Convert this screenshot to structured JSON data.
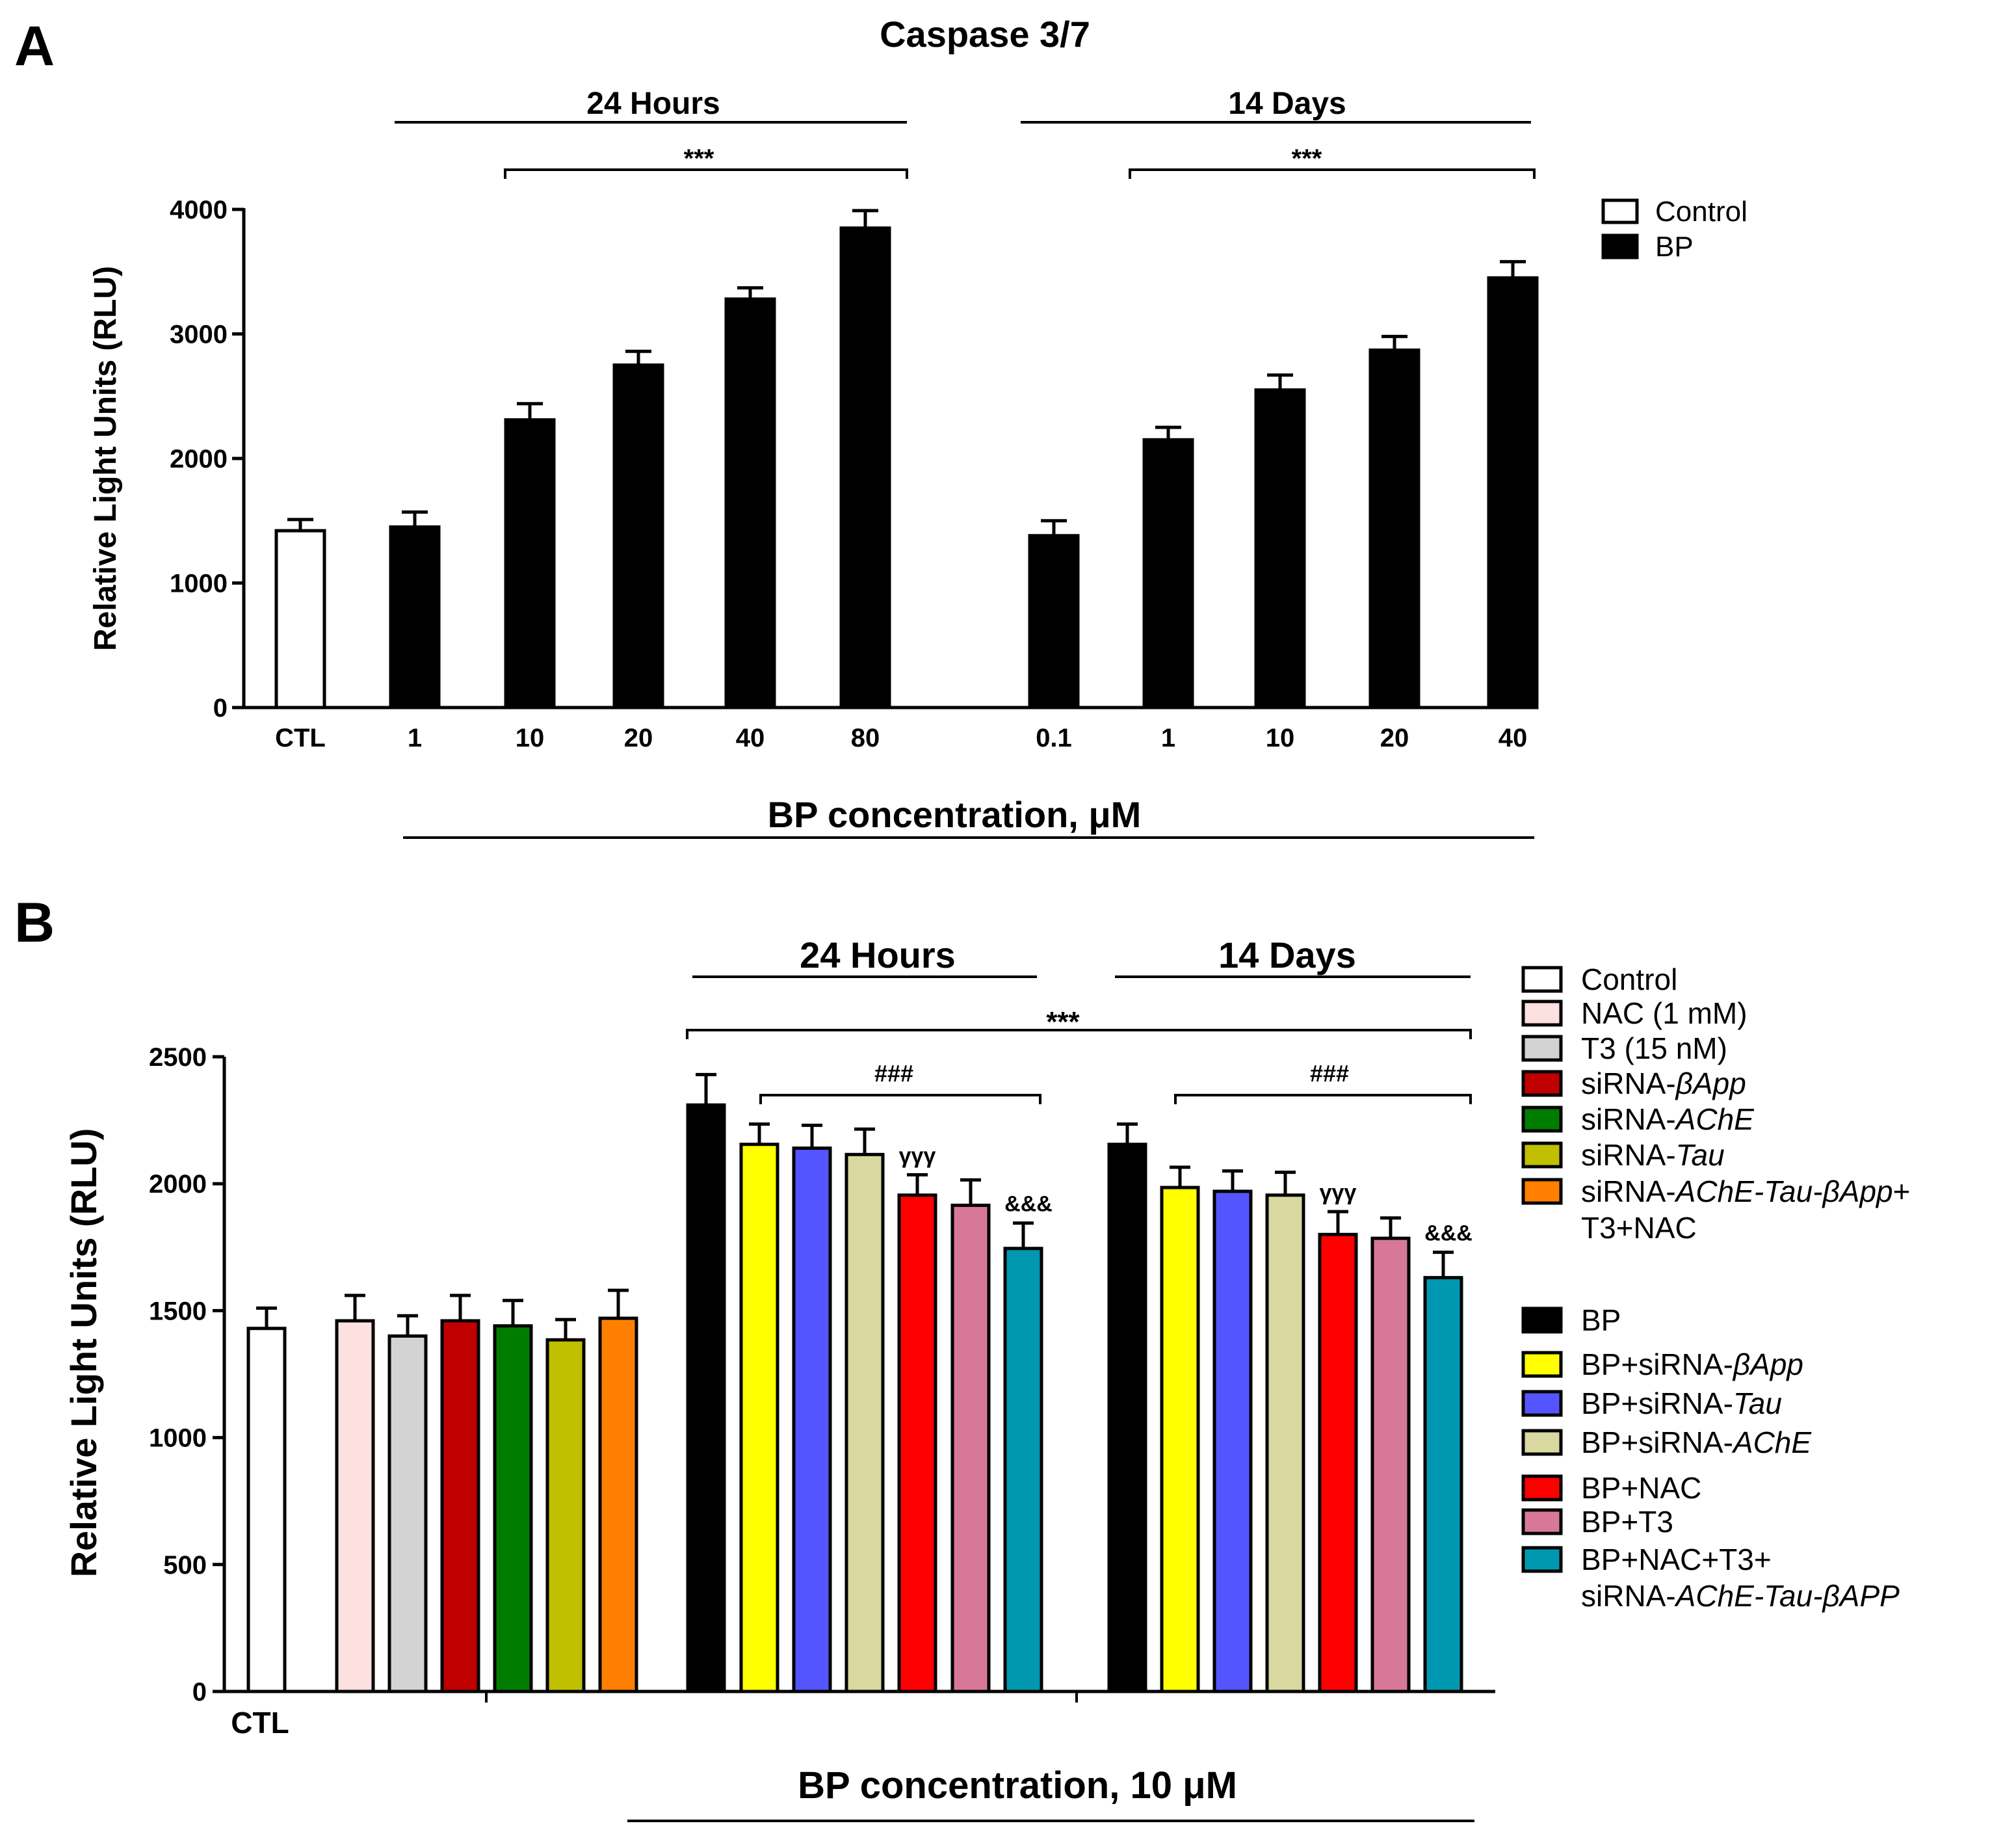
{
  "chart_data": [
    {
      "panel": "A",
      "type": "bar",
      "title": "Caspase 3/7",
      "ylabel": "Relative Light Units (RLU)",
      "xlabel": "BP concentration, μM",
      "ylim": [
        0,
        4000
      ],
      "yticks": [
        "0",
        "1000",
        "2000",
        "3000",
        "4000"
      ],
      "groups": [
        {
          "label": "24 Hours",
          "significance": "***"
        },
        {
          "label": "14 Days",
          "significance": "***"
        }
      ],
      "legend": [
        {
          "label": "Control",
          "color": "#ffffff"
        },
        {
          "label": "BP",
          "color": "#000000"
        }
      ],
      "bars": [
        {
          "category": "CTL",
          "value": 1420,
          "error": 90,
          "series": "Control",
          "color": "#ffffff"
        },
        {
          "category": "1",
          "value": 1450,
          "error": 120,
          "series": "BP",
          "color": "#000000"
        },
        {
          "category": "10",
          "value": 2310,
          "error": 130,
          "series": "BP",
          "color": "#000000"
        },
        {
          "category": "20",
          "value": 2750,
          "error": 110,
          "series": "BP",
          "color": "#000000"
        },
        {
          "category": "40",
          "value": 3280,
          "error": 90,
          "series": "BP",
          "color": "#000000"
        },
        {
          "category": "80",
          "value": 3850,
          "error": 140,
          "series": "BP",
          "color": "#000000"
        },
        {
          "category": "0.1",
          "value": 1380,
          "error": 120,
          "series": "BP",
          "color": "#000000"
        },
        {
          "category": "1",
          "value": 2150,
          "error": 100,
          "series": "BP",
          "color": "#000000"
        },
        {
          "category": "10",
          "value": 2550,
          "error": 120,
          "series": "BP",
          "color": "#000000"
        },
        {
          "category": "20",
          "value": 2870,
          "error": 110,
          "series": "BP",
          "color": "#000000"
        },
        {
          "category": "40",
          "value": 3450,
          "error": 130,
          "series": "BP",
          "color": "#000000"
        }
      ]
    },
    {
      "panel": "B",
      "type": "bar",
      "title": "",
      "ylabel": "Relative Light Units (RLU)",
      "xlabel": "BP concentration, 10  μM",
      "ylim": [
        0,
        2500
      ],
      "yticks": [
        "0",
        "500",
        "1000",
        "1500",
        "2000",
        "2500"
      ],
      "ctl_label": "CTL",
      "overall_significance": "***",
      "groups": [
        {
          "label": "24 Hours",
          "significance": "###"
        },
        {
          "label": "14 Days",
          "significance": "###"
        }
      ],
      "bar_annotations": [
        "γγγ",
        "&&&",
        "γγγ",
        "&&&"
      ],
      "legend_controls": [
        {
          "label": "Control",
          "color": "#ffffff"
        },
        {
          "label": "NAC (1 mM)",
          "color": "#fde0e0"
        },
        {
          "label": "T3 (15 nM)",
          "color": "#d3d3d3"
        },
        {
          "label": "siRNA-βApp",
          "color": "#c00000"
        },
        {
          "label": "siRNA-AChE",
          "color": "#007d00"
        },
        {
          "label": "siRNA-Tau",
          "color": "#c0c000"
        },
        {
          "label": "siRNA-AChE-Tau-βApp+",
          "color": "#ff8000"
        },
        {
          "label": "T3+NAC",
          "color": ""
        }
      ],
      "legend_bp": [
        {
          "label": "BP",
          "color": "#000000"
        },
        {
          "label": "BP+siRNA-βApp",
          "color": "#ffff00"
        },
        {
          "label": "BP+siRNA-Tau",
          "color": "#5555ff"
        },
        {
          "label": "BP+siRNA-AChE",
          "color": "#d8d8a0"
        },
        {
          "label": "BP+NAC",
          "color": "#ff0000"
        },
        {
          "label": "BP+T3",
          "color": "#d87898"
        },
        {
          "label": "BP+NAC+T3+",
          "color": "#0098b0"
        },
        {
          "label": "siRNA-AChE-Tau-βAPP",
          "color": ""
        }
      ],
      "bars": [
        {
          "series": "Control",
          "value": 1430,
          "error": 80,
          "color": "#ffffff"
        },
        {
          "series": "NAC (1 mM)",
          "value": 1460,
          "error": 100,
          "color": "#fde0e0"
        },
        {
          "series": "T3 (15 nM)",
          "value": 1400,
          "error": 80,
          "color": "#d3d3d3"
        },
        {
          "series": "siRNA-βApp",
          "value": 1460,
          "error": 100,
          "color": "#c00000"
        },
        {
          "series": "siRNA-AChE",
          "value": 1440,
          "error": 100,
          "color": "#007d00"
        },
        {
          "series": "siRNA-Tau",
          "value": 1385,
          "error": 80,
          "color": "#c0c000"
        },
        {
          "series": "siRNA-AChE-Tau-βApp+T3+NAC",
          "value": 1470,
          "error": 110,
          "color": "#ff8000"
        },
        {
          "series": "BP",
          "value": 2310,
          "error": 120,
          "color": "#000000",
          "group": "24 Hours"
        },
        {
          "series": "BP+siRNA-βApp",
          "value": 2155,
          "error": 80,
          "color": "#ffff00",
          "group": "24 Hours"
        },
        {
          "series": "BP+siRNA-Tau",
          "value": 2140,
          "error": 90,
          "color": "#5555ff",
          "group": "24 Hours"
        },
        {
          "series": "BP+siRNA-AChE",
          "value": 2115,
          "error": 100,
          "color": "#d8d8a0",
          "group": "24 Hours"
        },
        {
          "series": "BP+NAC",
          "value": 1955,
          "error": 80,
          "color": "#ff0000",
          "group": "24 Hours"
        },
        {
          "series": "BP+T3",
          "value": 1915,
          "error": 100,
          "color": "#d87898",
          "group": "24 Hours"
        },
        {
          "series": "BP+NAC+T3+siRNA-AChE-Tau-βAPP",
          "value": 1745,
          "error": 100,
          "color": "#0098b0",
          "group": "24 Hours"
        },
        {
          "series": "BP",
          "value": 2155,
          "error": 80,
          "color": "#000000",
          "group": "14 Days"
        },
        {
          "series": "BP+siRNA-βApp",
          "value": 1985,
          "error": 80,
          "color": "#ffff00",
          "group": "14 Days"
        },
        {
          "series": "BP+siRNA-Tau",
          "value": 1970,
          "error": 80,
          "color": "#5555ff",
          "group": "14 Days"
        },
        {
          "series": "BP+siRNA-AChE",
          "value": 1955,
          "error": 90,
          "color": "#d8d8a0",
          "group": "14 Days"
        },
        {
          "series": "BP+NAC",
          "value": 1800,
          "error": 90,
          "color": "#ff0000",
          "group": "14 Days"
        },
        {
          "series": "BP+T3",
          "value": 1785,
          "error": 80,
          "color": "#d87898",
          "group": "14 Days"
        },
        {
          "series": "BP+NAC+T3+siRNA-AChE-Tau-βAPP",
          "value": 1630,
          "error": 100,
          "color": "#0098b0",
          "group": "14 Days"
        }
      ]
    }
  ]
}
